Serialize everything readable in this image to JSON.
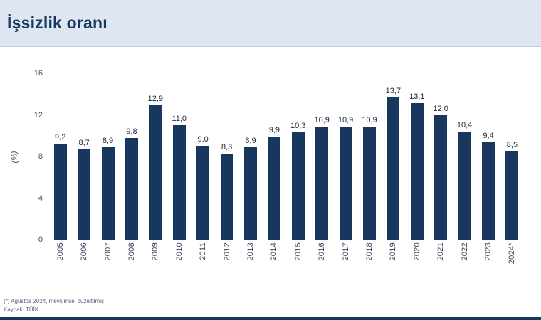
{
  "header": {
    "title": "İşsizlik oranı"
  },
  "chart_data": {
    "type": "bar",
    "title": "İşsizlik oranı",
    "xlabel": "",
    "ylabel": "(%)",
    "ylim": [
      0,
      16
    ],
    "yticks": [
      0,
      4,
      8,
      12,
      16
    ],
    "grid": false,
    "legend": "none",
    "bar_color": "#17375e",
    "categories": [
      "2005",
      "2006",
      "2007",
      "2008",
      "2009",
      "2010",
      "2011",
      "2012",
      "2013",
      "2014",
      "2015",
      "2016",
      "2017",
      "2018",
      "2019",
      "2020",
      "2021",
      "2022",
      "2023",
      "2024*"
    ],
    "values": [
      9.2,
      8.7,
      8.9,
      9.8,
      12.9,
      11.0,
      9.0,
      8.3,
      8.9,
      9.9,
      10.3,
      10.9,
      10.9,
      10.9,
      13.7,
      13.1,
      12.0,
      10.4,
      9.4,
      8.5
    ],
    "value_labels": [
      "9,2",
      "8,7",
      "8,9",
      "9,8",
      "12,9",
      "11,0",
      "9,0",
      "8,3",
      "8,9",
      "9,9",
      "10,3",
      "10,9",
      "10,9",
      "10,9",
      "13,7",
      "13,1",
      "12,0",
      "10,4",
      "9,4",
      "8,5"
    ]
  },
  "footer": {
    "note": "(*) Ağustos 2024, mevsimsel düzeltilmiş",
    "source": "Kaynak: TÜİK"
  },
  "colors": {
    "header_bg": "#dde6f2",
    "title_text": "#17375e",
    "bar": "#17375e",
    "axis_text": "#3d4961"
  }
}
